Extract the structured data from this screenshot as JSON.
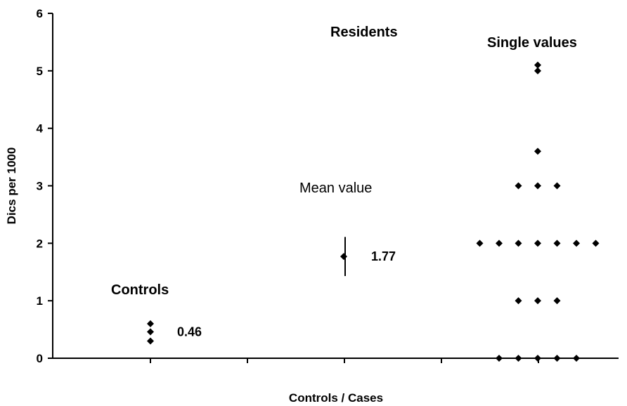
{
  "chart_data": {
    "type": "scatter",
    "title": "",
    "xlabel": "Controls / Cases",
    "ylabel": "Dics per 1000",
    "ylim": [
      0,
      6
    ],
    "yticks": [
      "0",
      "1",
      "2",
      "3",
      "4",
      "5",
      "6"
    ],
    "grid": false,
    "legend": "none",
    "annotations": {
      "controls": "Controls",
      "residents": "Residents",
      "single_values": "Single values",
      "mean_value": "Mean value"
    },
    "groups": [
      {
        "key": "controls",
        "values": [
          0.3,
          0.46,
          0.6
        ],
        "mean": 0.46,
        "mean_label": "0.46"
      },
      {
        "key": "residents",
        "values": [
          1.77
        ],
        "mean": 1.77,
        "mean_label": "1.77",
        "error_range": [
          1.43,
          2.11
        ]
      },
      {
        "key": "single_values",
        "values": [
          5.1,
          5.0,
          3.6,
          3,
          3,
          3,
          2,
          2,
          2,
          2,
          2,
          2,
          2,
          1,
          1,
          1,
          0,
          0,
          0,
          0,
          0
        ]
      }
    ],
    "marker_color": "#000000"
  }
}
